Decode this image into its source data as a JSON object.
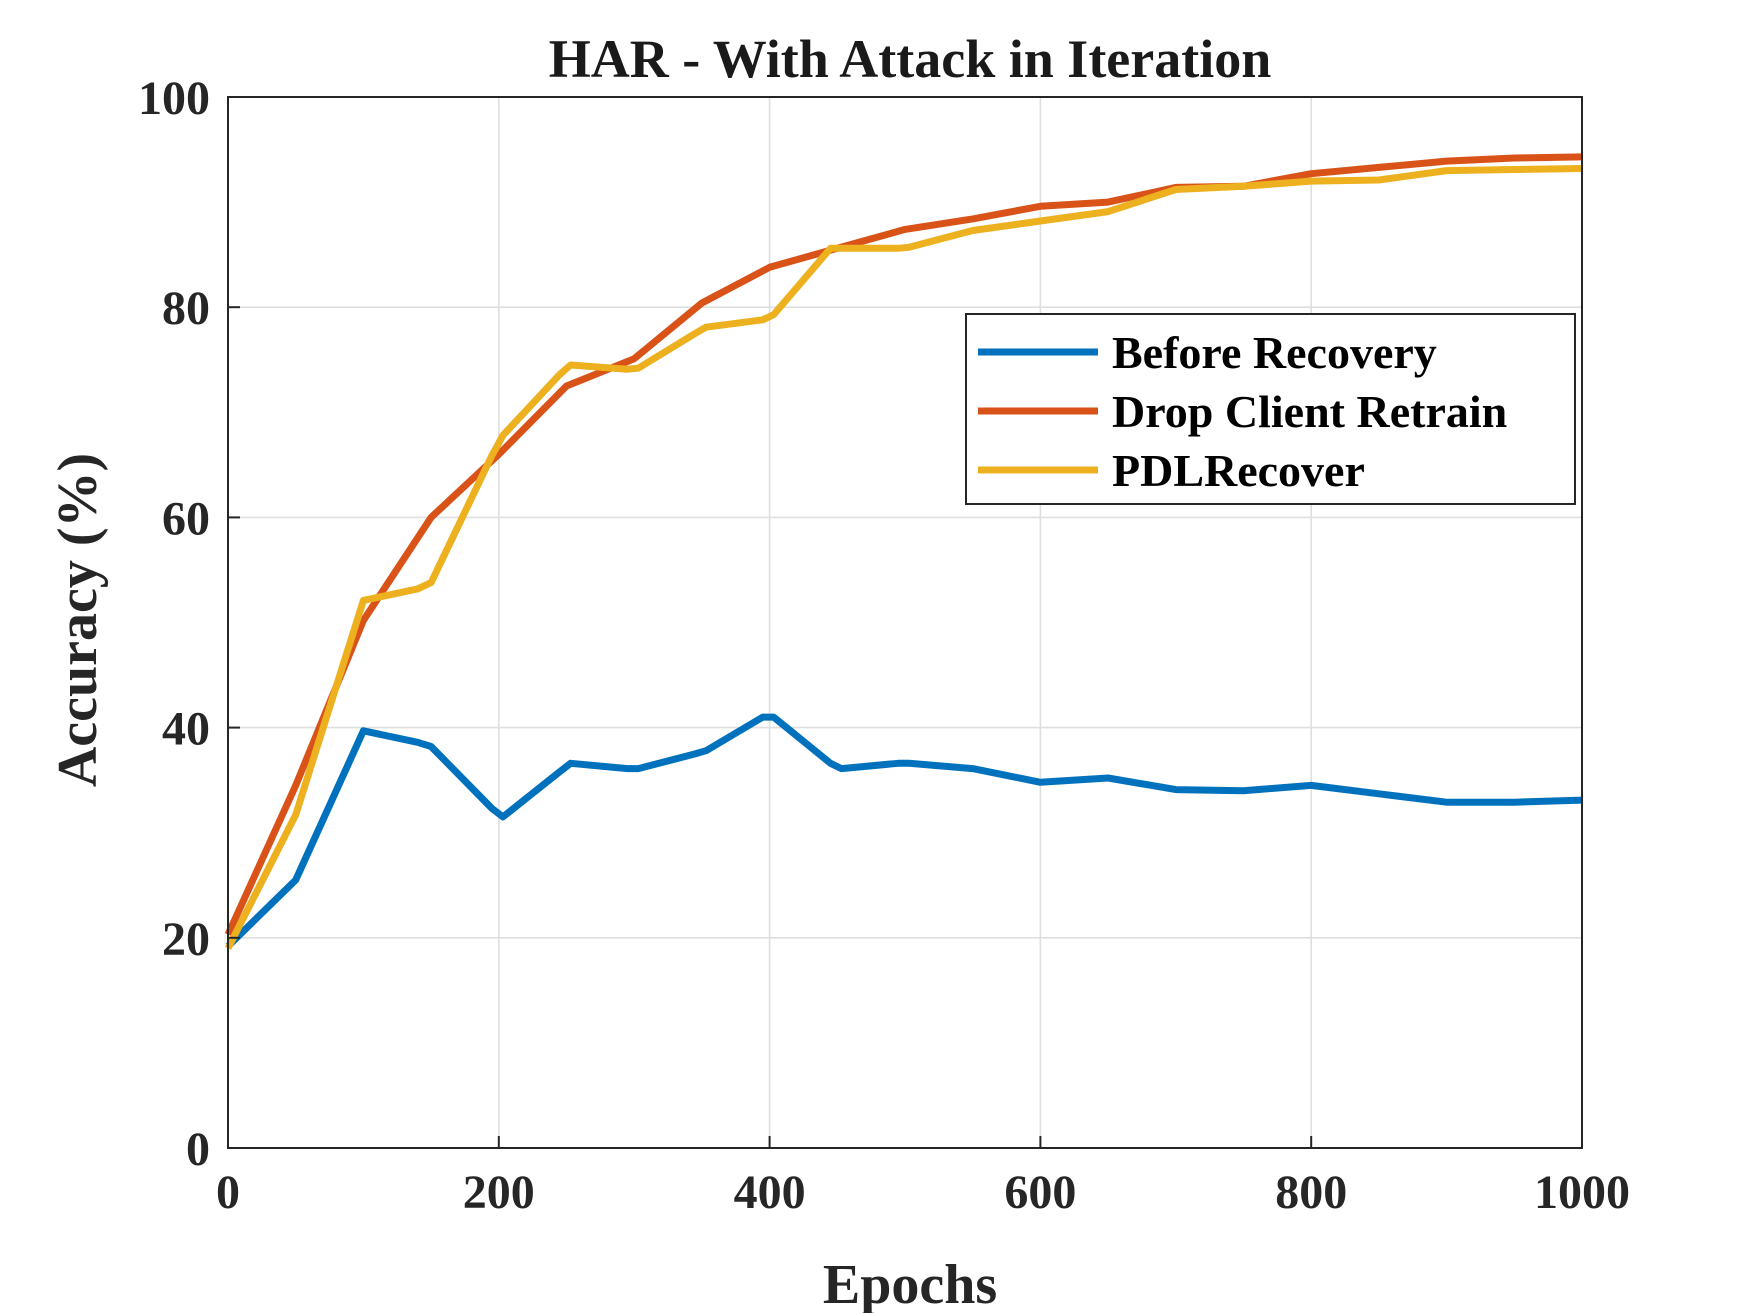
{
  "chart_data": {
    "type": "line",
    "title": "HAR - With Attack in Iteration",
    "xlabel": "Epochs",
    "ylabel": "Accuracy (%)",
    "xlim": [
      0,
      1000
    ],
    "ylim": [
      0,
      100
    ],
    "xticks": [
      0,
      200,
      400,
      600,
      800,
      1000
    ],
    "yticks": [
      0,
      20,
      40,
      60,
      80,
      100
    ],
    "xtick_labels": [
      "0",
      "200",
      "400",
      "600",
      "800",
      "1000"
    ],
    "ytick_labels": [
      "0",
      "20",
      "40",
      "60",
      "80",
      "100"
    ],
    "grid": true,
    "legend_position": "upper-right",
    "series": [
      {
        "name": "Before Recovery",
        "color": "#0072BD",
        "x": [
          0,
          50,
          100,
          140,
          150,
          195,
          203,
          245,
          253,
          295,
          303,
          345,
          353,
          395,
          403,
          445,
          453,
          495,
          503,
          550,
          600,
          650,
          700,
          750,
          800,
          850,
          900,
          950,
          1000
        ],
        "y": [
          19.2,
          25.5,
          39.7,
          38.6,
          38.2,
          32.3,
          31.5,
          35.8,
          36.6,
          36.1,
          36.1,
          37.5,
          37.8,
          41.0,
          41.0,
          36.6,
          36.1,
          36.6,
          36.6,
          36.1,
          34.8,
          35.2,
          34.1,
          34.0,
          34.5,
          33.7,
          32.9,
          32.9,
          33.1
        ]
      },
      {
        "name": "Drop Client Retrain",
        "color": "#D95319",
        "x": [
          0,
          50,
          100,
          150,
          200,
          250,
          300,
          350,
          400,
          450,
          500,
          550,
          600,
          650,
          700,
          750,
          800,
          850,
          900,
          950,
          1000
        ],
        "y": [
          20.3,
          34.5,
          50.2,
          60.0,
          66.0,
          72.5,
          75.1,
          80.4,
          83.8,
          85.6,
          87.4,
          88.4,
          89.6,
          90.0,
          91.4,
          91.5,
          92.7,
          93.3,
          93.9,
          94.2,
          94.3
        ]
      },
      {
        "name": "PDLRecover",
        "color": "#EDB120",
        "x": [
          0,
          50,
          100,
          140,
          150,
          195,
          203,
          245,
          253,
          295,
          303,
          345,
          353,
          395,
          403,
          445,
          453,
          495,
          503,
          550,
          600,
          650,
          700,
          750,
          800,
          850,
          900,
          950,
          1000
        ],
        "y": [
          19.0,
          31.7,
          52.1,
          53.2,
          53.8,
          65.9,
          67.8,
          73.6,
          74.5,
          74.1,
          74.2,
          77.5,
          78.1,
          78.8,
          79.3,
          85.6,
          85.6,
          85.6,
          85.7,
          87.3,
          88.2,
          89.1,
          91.2,
          91.5,
          92.0,
          92.1,
          93.0,
          93.1,
          93.2
        ]
      }
    ]
  }
}
